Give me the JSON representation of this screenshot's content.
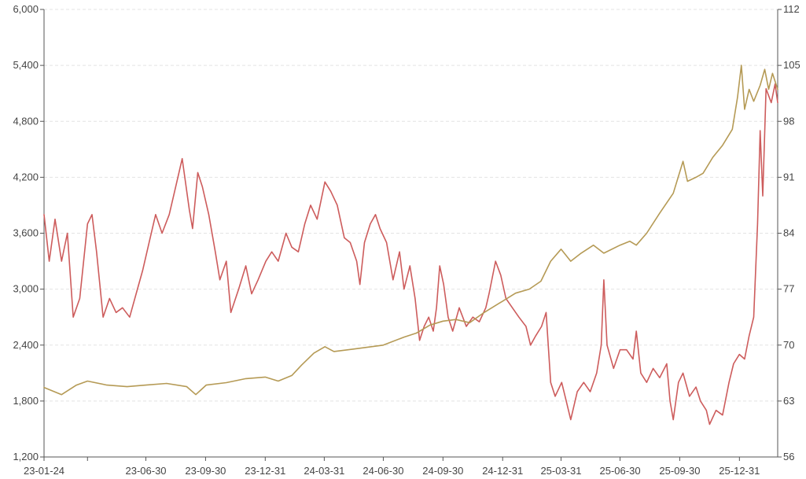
{
  "chart_data": {
    "type": "line",
    "title": "",
    "xlabel": "",
    "ylabel": "",
    "y2label": "",
    "grid": true,
    "legend": "none",
    "colors": {
      "series_left": "#cd5c5c",
      "series_right": "#b59a55",
      "grid": "#e3e3e3",
      "axis": "#555555"
    },
    "x_tick_labels": [
      "23-01-24",
      "23-06-30",
      "23-09-30",
      "23-12-31",
      "24-03-31",
      "24-06-30",
      "24-09-30",
      "24-12-31",
      "25-03-31",
      "25-06-30",
      "25-09-30",
      "25-12-31"
    ],
    "xlim": [
      "2023-01-24",
      "2026-02-28"
    ],
    "y_left_ticks": [
      "1,200",
      "1,800",
      "2,400",
      "3,000",
      "3,600",
      "4,200",
      "4,800",
      "5,400",
      "6,000"
    ],
    "ylim_left": [
      1200,
      6000
    ],
    "y_right_ticks": [
      "56",
      "63",
      "70",
      "77",
      "84",
      "91",
      "98",
      "105",
      "112"
    ],
    "ylim_right": [
      56,
      112
    ],
    "series": [
      {
        "axis": "left",
        "color": "#cd5c5c",
        "points": [
          [
            "2023-01-24",
            3800
          ],
          [
            "2023-02-01",
            3300
          ],
          [
            "2023-02-10",
            3750
          ],
          [
            "2023-02-20",
            3300
          ],
          [
            "2023-03-01",
            3600
          ],
          [
            "2023-03-10",
            2700
          ],
          [
            "2023-03-20",
            2900
          ],
          [
            "2023-04-01",
            3700
          ],
          [
            "2023-04-08",
            3800
          ],
          [
            "2023-04-15",
            3400
          ],
          [
            "2023-04-25",
            2700
          ],
          [
            "2023-05-05",
            2900
          ],
          [
            "2023-05-15",
            2750
          ],
          [
            "2023-05-25",
            2800
          ],
          [
            "2023-06-05",
            2700
          ],
          [
            "2023-06-15",
            2950
          ],
          [
            "2023-06-25",
            3200
          ],
          [
            "2023-07-05",
            3500
          ],
          [
            "2023-07-15",
            3800
          ],
          [
            "2023-07-25",
            3600
          ],
          [
            "2023-08-05",
            3800
          ],
          [
            "2023-08-15",
            4100
          ],
          [
            "2023-08-25",
            4400
          ],
          [
            "2023-09-05",
            3850
          ],
          [
            "2023-09-10",
            3650
          ],
          [
            "2023-09-18",
            4250
          ],
          [
            "2023-09-25",
            4100
          ],
          [
            "2023-10-05",
            3800
          ],
          [
            "2023-10-15",
            3400
          ],
          [
            "2023-10-22",
            3100
          ],
          [
            "2023-11-01",
            3300
          ],
          [
            "2023-11-08",
            2750
          ],
          [
            "2023-11-20",
            3000
          ],
          [
            "2023-12-01",
            3250
          ],
          [
            "2023-12-10",
            2950
          ],
          [
            "2023-12-20",
            3100
          ],
          [
            "2024-01-01",
            3300
          ],
          [
            "2024-01-10",
            3400
          ],
          [
            "2024-01-20",
            3300
          ],
          [
            "2024-02-01",
            3600
          ],
          [
            "2024-02-10",
            3450
          ],
          [
            "2024-02-20",
            3400
          ],
          [
            "2024-03-01",
            3700
          ],
          [
            "2024-03-10",
            3900
          ],
          [
            "2024-03-20",
            3750
          ],
          [
            "2024-04-01",
            4150
          ],
          [
            "2024-04-10",
            4050
          ],
          [
            "2024-04-20",
            3900
          ],
          [
            "2024-05-01",
            3550
          ],
          [
            "2024-05-10",
            3500
          ],
          [
            "2024-05-20",
            3300
          ],
          [
            "2024-05-25",
            3050
          ],
          [
            "2024-06-01",
            3500
          ],
          [
            "2024-06-10",
            3700
          ],
          [
            "2024-06-18",
            3800
          ],
          [
            "2024-06-25",
            3650
          ],
          [
            "2024-07-05",
            3500
          ],
          [
            "2024-07-15",
            3100
          ],
          [
            "2024-07-25",
            3400
          ],
          [
            "2024-08-01",
            3000
          ],
          [
            "2024-08-10",
            3250
          ],
          [
            "2024-08-18",
            2900
          ],
          [
            "2024-08-25",
            2450
          ],
          [
            "2024-09-01",
            2600
          ],
          [
            "2024-09-08",
            2700
          ],
          [
            "2024-09-15",
            2550
          ],
          [
            "2024-09-20",
            2800
          ],
          [
            "2024-09-25",
            3250
          ],
          [
            "2024-10-01",
            3050
          ],
          [
            "2024-10-08",
            2700
          ],
          [
            "2024-10-15",
            2550
          ],
          [
            "2024-10-25",
            2800
          ],
          [
            "2024-11-05",
            2600
          ],
          [
            "2024-11-15",
            2700
          ],
          [
            "2024-11-25",
            2650
          ],
          [
            "2024-12-05",
            2800
          ],
          [
            "2024-12-10",
            2950
          ],
          [
            "2024-12-20",
            3300
          ],
          [
            "2024-12-28",
            3150
          ],
          [
            "2025-01-05",
            2900
          ],
          [
            "2025-01-15",
            2800
          ],
          [
            "2025-01-25",
            2700
          ],
          [
            "2025-02-05",
            2600
          ],
          [
            "2025-02-12",
            2400
          ],
          [
            "2025-02-20",
            2500
          ],
          [
            "2025-03-01",
            2600
          ],
          [
            "2025-03-08",
            2750
          ],
          [
            "2025-03-15",
            2000
          ],
          [
            "2025-03-22",
            1850
          ],
          [
            "2025-04-01",
            2000
          ],
          [
            "2025-04-08",
            1800
          ],
          [
            "2025-04-15",
            1600
          ],
          [
            "2025-04-25",
            1900
          ],
          [
            "2025-05-05",
            2000
          ],
          [
            "2025-05-15",
            1900
          ],
          [
            "2025-05-25",
            2100
          ],
          [
            "2025-06-01",
            2400
          ],
          [
            "2025-06-05",
            3100
          ],
          [
            "2025-06-10",
            2400
          ],
          [
            "2025-06-20",
            2150
          ],
          [
            "2025-06-30",
            2350
          ],
          [
            "2025-07-10",
            2350
          ],
          [
            "2025-07-20",
            2250
          ],
          [
            "2025-07-25",
            2550
          ],
          [
            "2025-08-01",
            2100
          ],
          [
            "2025-08-10",
            2000
          ],
          [
            "2025-08-20",
            2150
          ],
          [
            "2025-08-30",
            2050
          ],
          [
            "2025-09-10",
            2200
          ],
          [
            "2025-09-15",
            1800
          ],
          [
            "2025-09-20",
            1600
          ],
          [
            "2025-09-28",
            2000
          ],
          [
            "2025-10-05",
            2100
          ],
          [
            "2025-10-15",
            1850
          ],
          [
            "2025-10-25",
            1950
          ],
          [
            "2025-11-01",
            1800
          ],
          [
            "2025-11-10",
            1700
          ],
          [
            "2025-11-15",
            1550
          ],
          [
            "2025-11-25",
            1700
          ],
          [
            "2025-12-05",
            1650
          ],
          [
            "2025-12-15",
            2000
          ],
          [
            "2025-12-22",
            2200
          ],
          [
            "2025-12-31",
            2300
          ],
          [
            "2026-01-08",
            2250
          ],
          [
            "2026-01-15",
            2500
          ],
          [
            "2026-01-22",
            2700
          ],
          [
            "2026-01-28",
            3700
          ],
          [
            "2026-02-01",
            4700
          ],
          [
            "2026-02-05",
            4000
          ],
          [
            "2026-02-10",
            5150
          ],
          [
            "2026-02-18",
            5000
          ],
          [
            "2026-02-24",
            5200
          ],
          [
            "2026-02-28",
            5000
          ]
        ]
      },
      {
        "axis": "right",
        "color": "#b59a55",
        "points": [
          [
            "2023-01-24",
            64.7
          ],
          [
            "2023-02-20",
            63.8
          ],
          [
            "2023-03-15",
            65.0
          ],
          [
            "2023-04-01",
            65.5
          ],
          [
            "2023-05-01",
            65.0
          ],
          [
            "2023-06-01",
            64.8
          ],
          [
            "2023-06-30",
            65.0
          ],
          [
            "2023-08-01",
            65.2
          ],
          [
            "2023-09-01",
            64.8
          ],
          [
            "2023-09-15",
            63.8
          ],
          [
            "2023-10-01",
            65.0
          ],
          [
            "2023-11-01",
            65.3
          ],
          [
            "2023-12-01",
            65.8
          ],
          [
            "2023-12-31",
            66.0
          ],
          [
            "2024-01-20",
            65.5
          ],
          [
            "2024-02-10",
            66.2
          ],
          [
            "2024-02-25",
            67.5
          ],
          [
            "2024-03-15",
            69.0
          ],
          [
            "2024-04-01",
            69.8
          ],
          [
            "2024-04-15",
            69.2
          ],
          [
            "2024-05-15",
            69.5
          ],
          [
            "2024-06-30",
            70.0
          ],
          [
            "2024-08-01",
            71.0
          ],
          [
            "2024-08-20",
            71.5
          ],
          [
            "2024-09-10",
            72.5
          ],
          [
            "2024-09-30",
            73.0
          ],
          [
            "2024-10-20",
            73.2
          ],
          [
            "2024-11-10",
            72.8
          ],
          [
            "2024-12-01",
            74.0
          ],
          [
            "2024-12-31",
            75.5
          ],
          [
            "2025-01-20",
            76.5
          ],
          [
            "2025-02-10",
            77.0
          ],
          [
            "2025-02-28",
            78.0
          ],
          [
            "2025-03-15",
            80.5
          ],
          [
            "2025-03-31",
            82.0
          ],
          [
            "2025-04-15",
            80.5
          ],
          [
            "2025-05-01",
            81.5
          ],
          [
            "2025-05-20",
            82.5
          ],
          [
            "2025-06-05",
            81.5
          ],
          [
            "2025-06-30",
            82.5
          ],
          [
            "2025-07-15",
            83.0
          ],
          [
            "2025-07-25",
            82.5
          ],
          [
            "2025-08-10",
            84.0
          ],
          [
            "2025-08-30",
            86.5
          ],
          [
            "2025-09-20",
            89.0
          ],
          [
            "2025-10-05",
            93.0
          ],
          [
            "2025-10-12",
            90.5
          ],
          [
            "2025-10-25",
            91.0
          ],
          [
            "2025-11-05",
            91.5
          ],
          [
            "2025-11-20",
            93.5
          ],
          [
            "2025-12-05",
            95.0
          ],
          [
            "2025-12-20",
            97.0
          ],
          [
            "2025-12-28",
            101.0
          ],
          [
            "2026-01-03",
            105.0
          ],
          [
            "2026-01-08",
            99.5
          ],
          [
            "2026-01-15",
            102.0
          ],
          [
            "2026-01-22",
            100.5
          ],
          [
            "2026-02-01",
            102.5
          ],
          [
            "2026-02-08",
            104.5
          ],
          [
            "2026-02-14",
            102.0
          ],
          [
            "2026-02-20",
            104.0
          ],
          [
            "2026-02-28",
            102.0
          ]
        ]
      }
    ]
  }
}
